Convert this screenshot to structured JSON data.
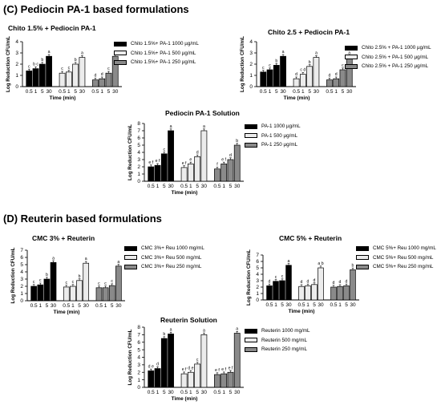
{
  "sections": [
    {
      "id": "sec1",
      "title": "(C) Pediocin PA-1 based formulations"
    },
    {
      "id": "sec2",
      "title": "(D) Reuterin based formulations"
    }
  ],
  "colors": {
    "c1000": "#000000",
    "c500": "#ececec",
    "c250": "#8a8a8a",
    "axis": "#000000"
  },
  "chart_data": [
    {
      "id": "c1",
      "type": "bar",
      "title": "Chito 1.5% + Pediocin PA-1",
      "xlabel": "Time  (min)",
      "ylabel": "Log Reduction CFU/mL",
      "ylim": [
        0,
        4
      ],
      "yticks": [
        0,
        1,
        2,
        3,
        4
      ],
      "legend_position": "right",
      "categories": [
        "0.5",
        "1",
        "5",
        "30"
      ],
      "series": [
        {
          "name": "Chito 1.5%+ PA-1 1000 µg/mL",
          "values": [
            1.4,
            1.6,
            2.0,
            2.7
          ],
          "letters": [
            "c",
            "b c",
            "b",
            "a"
          ]
        },
        {
          "name": "Chito 1.5%+ PA-1 500 µg/mL",
          "values": [
            1.2,
            1.3,
            2.0,
            2.6
          ],
          "letters": [
            "c",
            "c",
            "b",
            "a"
          ]
        },
        {
          "name": "Chito 1.5%+ PA-1 250 µg/mL",
          "values": [
            0.6,
            0.7,
            1.2,
            2.7
          ],
          "letters": [
            "d",
            "d",
            "c",
            "a"
          ]
        }
      ]
    },
    {
      "id": "c2",
      "type": "bar",
      "title": "Chito 2.5 + Pediocin PA-1",
      "xlabel": "Time  (min)",
      "ylabel": "Log Reduction CFU/mL",
      "ylim": [
        0,
        4
      ],
      "yticks": [
        0,
        1,
        2,
        3,
        4
      ],
      "legend_position": "right",
      "categories": [
        "0.5",
        "1",
        "5",
        "30"
      ],
      "series": [
        {
          "name": "Chito 2.5% + PA-1 1000 µg/mL",
          "values": [
            1.3,
            1.5,
            1.9,
            2.7
          ],
          "letters": [
            "c",
            "c",
            "b",
            "a"
          ]
        },
        {
          "name": "Chito 2.5% + PA-1 500 µg/mL",
          "values": [
            0.7,
            1.1,
            1.8,
            2.6
          ],
          "letters": [
            "d",
            "c d",
            "b",
            "a"
          ]
        },
        {
          "name": "Chito 2.5% + PA-1 250 µg/mL",
          "values": [
            0.6,
            0.7,
            1.5,
            2.6
          ],
          "letters": [
            "d",
            "d",
            "c",
            "a"
          ]
        }
      ]
    },
    {
      "id": "c3",
      "type": "bar",
      "title": "Pediocin PA-1 Solution",
      "xlabel": "Time  (min)",
      "ylabel": "Log Reduction CFU/mL",
      "ylim": [
        0,
        8
      ],
      "yticks": [
        0,
        1,
        2,
        3,
        4,
        5,
        6,
        7,
        8
      ],
      "legend_position": "right",
      "categories": [
        "0.5",
        "1",
        "5",
        "30"
      ],
      "series": [
        {
          "name": "PA-1 1000 µg/mL",
          "values": [
            2.0,
            2.2,
            3.8,
            7.0
          ],
          "letters": [
            "e f",
            "e f",
            "c",
            "a"
          ]
        },
        {
          "name": "PA-1 500 µg/mL",
          "values": [
            1.9,
            2.4,
            3.4,
            7.0
          ],
          "letters": [
            "e f",
            "e",
            "d",
            "a"
          ]
        },
        {
          "name": "PA-1 250 µg/mL",
          "values": [
            1.7,
            2.4,
            3.0,
            5.0
          ],
          "letters": [
            "f",
            "e f",
            "d",
            "b"
          ]
        }
      ]
    },
    {
      "id": "d1",
      "type": "bar",
      "title": "CMC 3% + Reuterin",
      "xlabel": "Time  (min)",
      "ylabel": "Log Reduction CFU/mL",
      "ylim": [
        0,
        7
      ],
      "yticks": [
        0,
        1,
        2,
        3,
        4,
        5,
        6,
        7
      ],
      "legend_position": "right",
      "categories": [
        "0.5",
        "1",
        "5",
        "30"
      ],
      "series": [
        {
          "name": "CMC 3%+ Reu 1000 mg/mL",
          "values": [
            2.0,
            2.2,
            3.0,
            5.3
          ],
          "letters": [
            "c",
            "c",
            "b",
            "a"
          ]
        },
        {
          "name": "CMC 3%+ Reu 500 mg/mL",
          "values": [
            1.9,
            2.0,
            2.8,
            5.2
          ],
          "letters": [
            "c",
            "c",
            "b",
            "a"
          ]
        },
        {
          "name": "CMC 3%+ Reu 250 mg/mL",
          "values": [
            1.8,
            1.8,
            2.1,
            4.8
          ],
          "letters": [
            "c",
            "c",
            "c",
            "a"
          ]
        }
      ]
    },
    {
      "id": "d2",
      "type": "bar",
      "title": "CMC 5% + Reuterin",
      "xlabel": "Time  (min)",
      "ylabel": "Log Reduction CFU/mL",
      "ylim": [
        0,
        7
      ],
      "yticks": [
        0,
        1,
        2,
        3,
        4,
        5,
        6,
        7
      ],
      "legend_position": "right",
      "categories": [
        "0.5",
        "1",
        "5",
        "30"
      ],
      "series": [
        {
          "name": "CMC 5%+ Reu 1000 mg/mL",
          "values": [
            2.2,
            2.9,
            3.0,
            5.4
          ],
          "letters": [
            "d",
            "c",
            "c",
            "a"
          ]
        },
        {
          "name": "CMC 5%+ Reu 500 mg/mL",
          "values": [
            2.1,
            2.2,
            2.4,
            5.0
          ],
          "letters": [
            "d",
            "d",
            "d",
            "a b"
          ]
        },
        {
          "name": "CMC 5%+ Reu 250 mg/mL",
          "values": [
            2.0,
            2.1,
            2.2,
            4.7
          ],
          "letters": [
            "d",
            "d",
            "d",
            "b"
          ]
        }
      ]
    },
    {
      "id": "d3",
      "type": "bar",
      "title": "Reuterin Solution",
      "xlabel": "Time  (min)",
      "ylabel": "Log Reduction CFU/mL",
      "ylim": [
        0,
        8
      ],
      "yticks": [
        0,
        1,
        2,
        3,
        4,
        5,
        6,
        7,
        8
      ],
      "legend_position": "right",
      "categories": [
        "0.5",
        "1",
        "5",
        "30"
      ],
      "series": [
        {
          "name": "Reuterin 1000 mg/mL",
          "values": [
            2.2,
            2.5,
            6.5,
            7.1
          ],
          "letters": [
            "d e",
            "d",
            "b",
            "a"
          ]
        },
        {
          "name": "Reuterin 500 mg/mL",
          "values": [
            1.8,
            2.0,
            3.1,
            7.0
          ],
          "letters": [
            "e f",
            "d e",
            "c",
            "a"
          ]
        },
        {
          "name": "Reuterin 250 mg/mL",
          "values": [
            1.7,
            1.8,
            2.0,
            7.2
          ],
          "letters": [
            "e f",
            "e f",
            "e f",
            "a"
          ]
        }
      ]
    }
  ]
}
